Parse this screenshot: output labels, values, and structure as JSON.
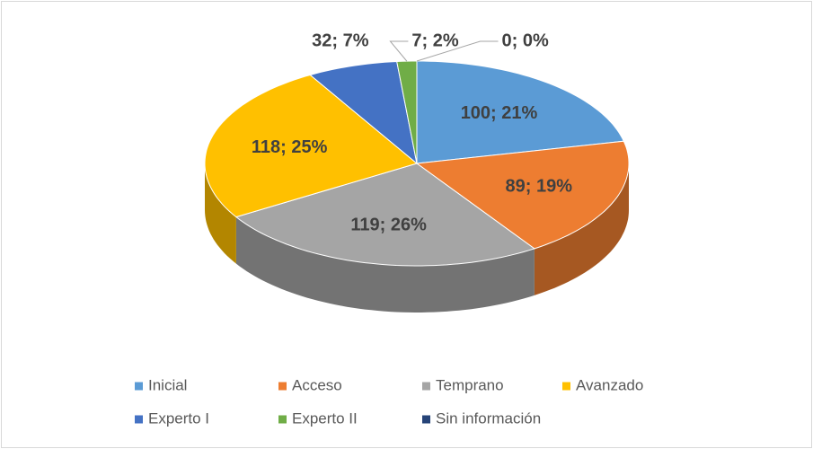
{
  "chart_data": {
    "type": "pie3d",
    "categories": [
      "Inicial",
      "Acceso",
      "Temprano",
      "Avanzado",
      "Experto I",
      "Experto II",
      "Sin información"
    ],
    "values": [
      100,
      89,
      119,
      118,
      32,
      7,
      0
    ],
    "value_labels": [
      "100; 21%",
      "89; 19%",
      "119; 26%",
      "118; 25%",
      "32; 7%",
      "7; 2%",
      "0; 0%"
    ],
    "colors": [
      "#5b9bd5",
      "#ed7d31",
      "#a5a5a5",
      "#ffc000",
      "#4472c4",
      "#70ad47",
      "#264478"
    ],
    "legend": "bottom"
  }
}
